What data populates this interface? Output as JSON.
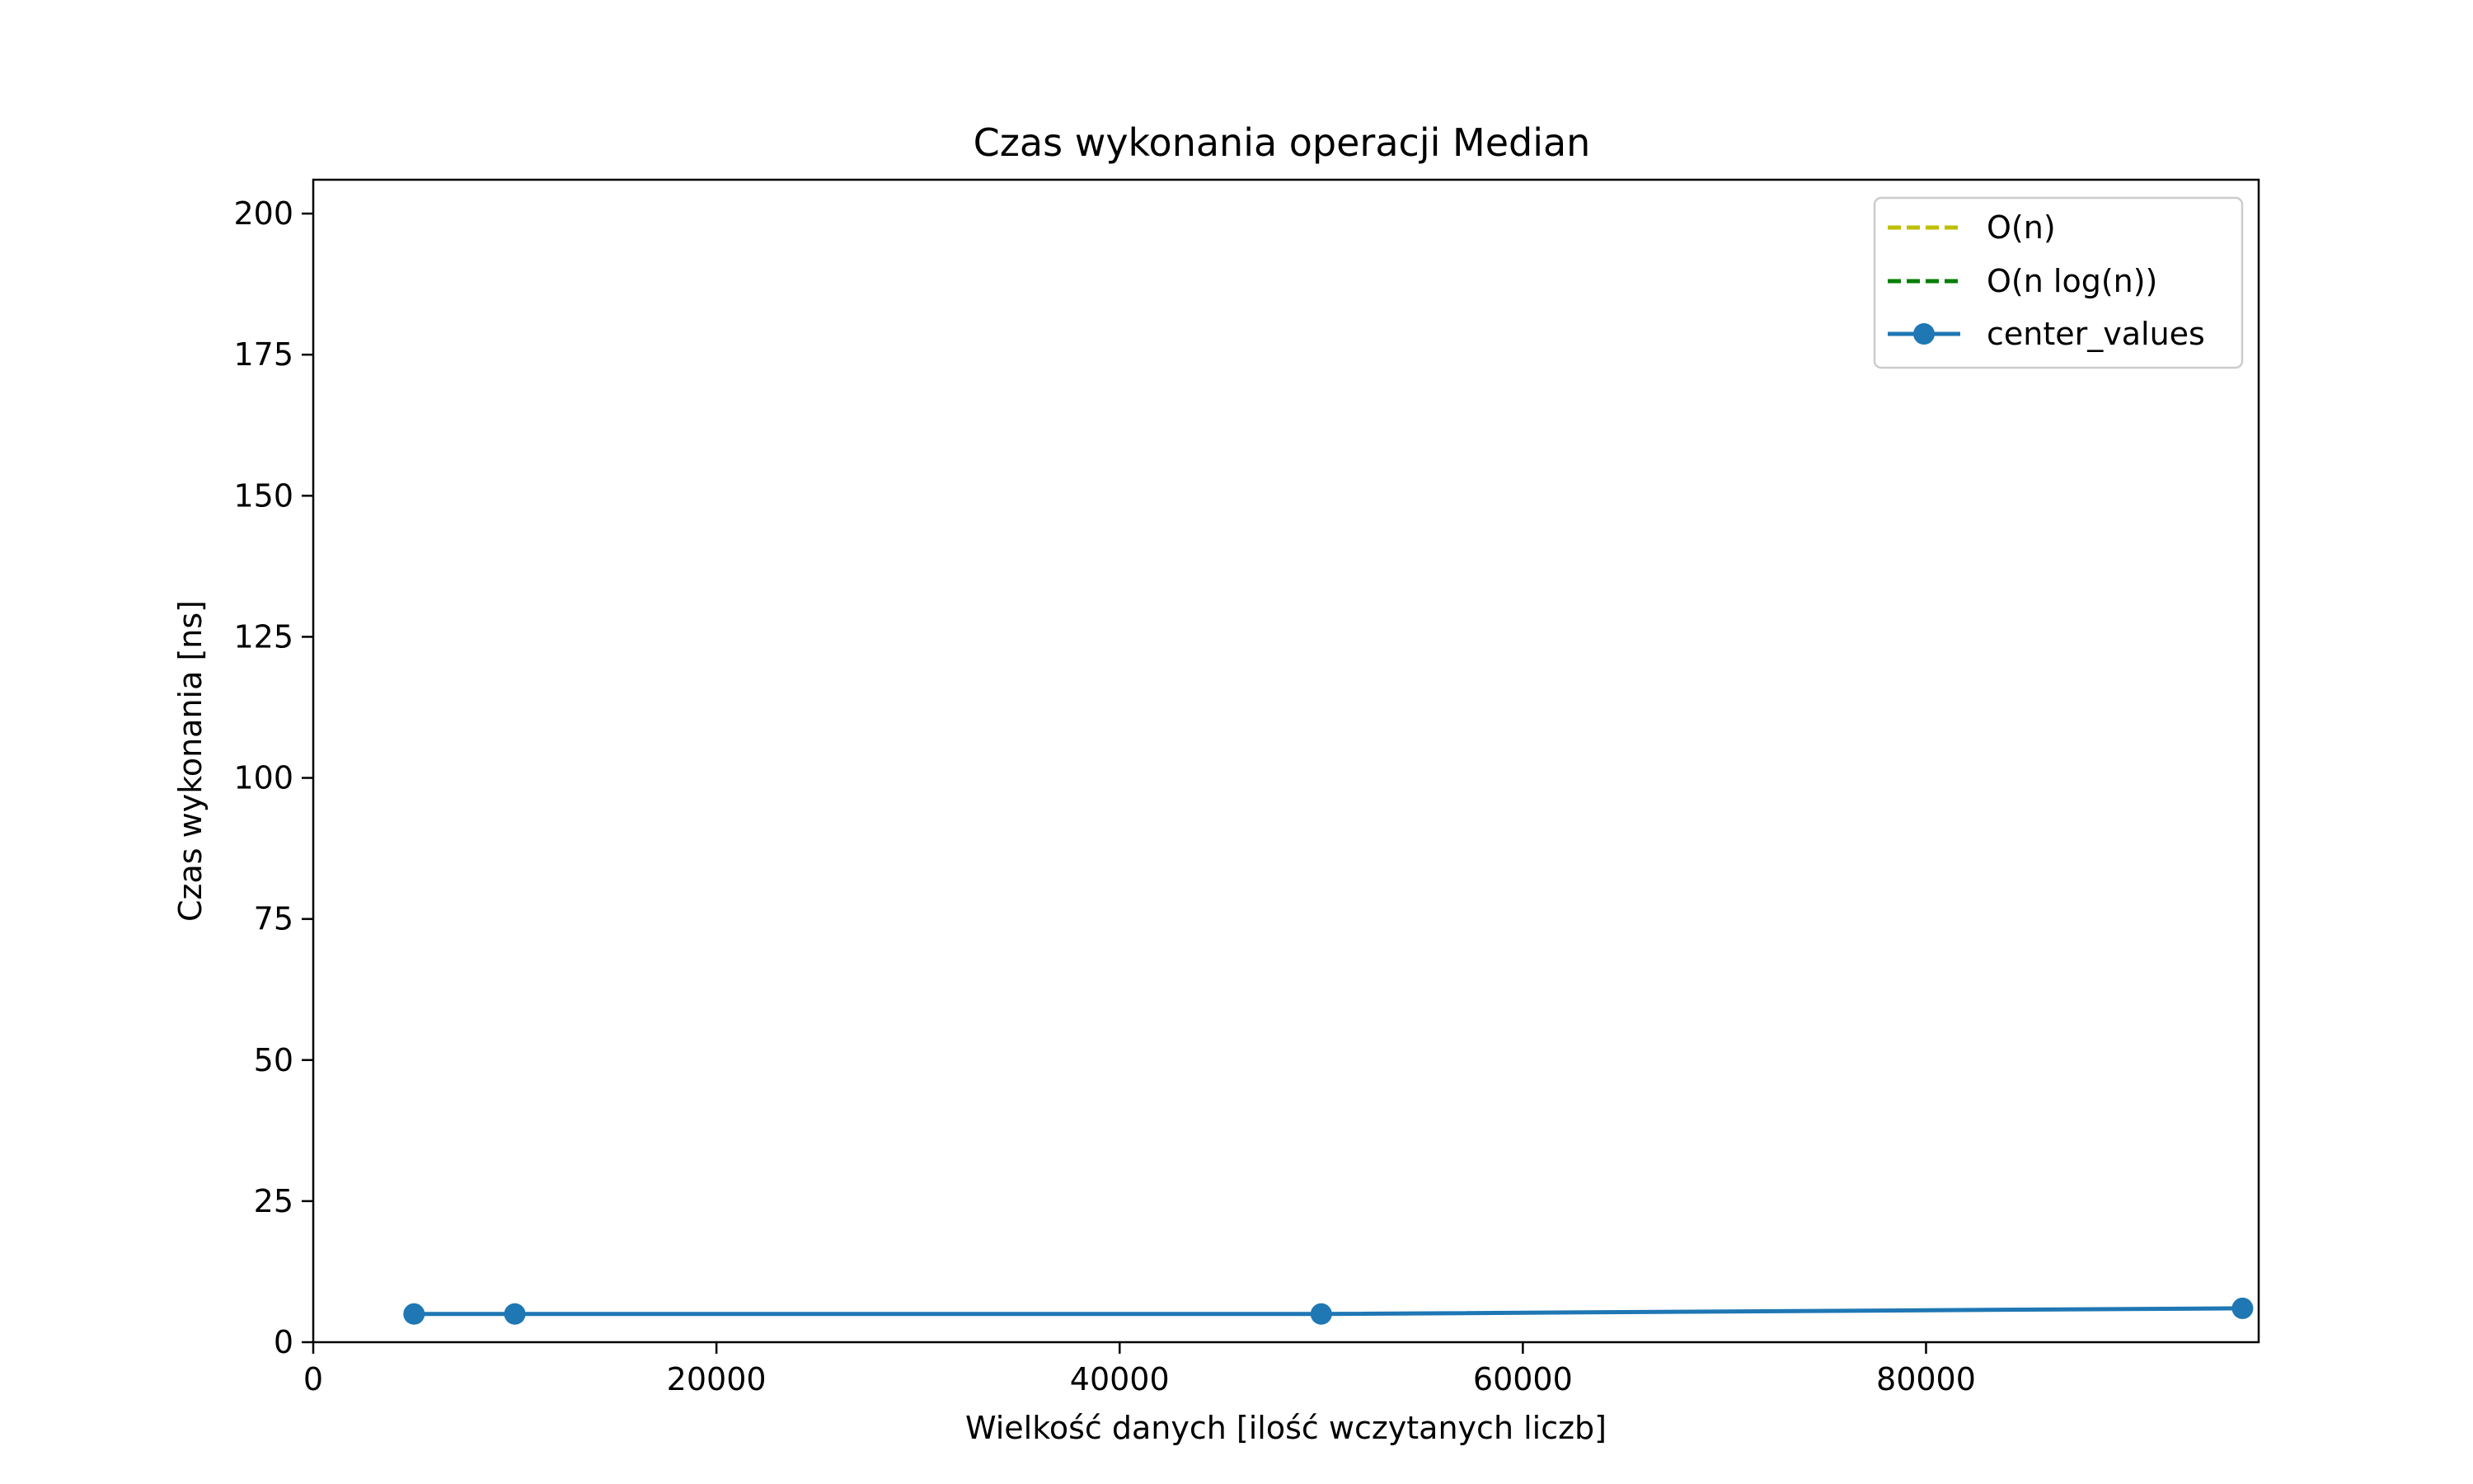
{
  "chart_data": {
    "type": "line",
    "title": "Czas wykonania operacji Median",
    "xlabel": "Wielkość danych [ilość wczytanych liczb]",
    "ylabel": "Czas wykonania [ns]",
    "xlim": [
      0,
      96500
    ],
    "ylim": [
      0,
      206
    ],
    "xticks": [
      0,
      20000,
      40000,
      60000,
      80000
    ],
    "yticks": [
      0,
      25,
      50,
      75,
      100,
      125,
      150,
      175,
      200
    ],
    "xtick_labels": [
      "0",
      "20000",
      "40000",
      "60000",
      "80000"
    ],
    "ytick_labels": [
      "0",
      "25",
      "50",
      "75",
      "100",
      "125",
      "150",
      "175",
      "200"
    ],
    "grid": false,
    "legend_position": "top-right",
    "legend": [
      {
        "label": "O(n)",
        "color": "#bfbf00",
        "style": "dashed"
      },
      {
        "label": "O(n log(n))",
        "color": "#007f00",
        "style": "dashed"
      },
      {
        "label": "center_values",
        "color": "#1f77b4",
        "style": "solid-marker"
      }
    ],
    "series": [
      {
        "name": "O(n)",
        "color": "#bfbf00",
        "style": "dashed",
        "x": [],
        "y": []
      },
      {
        "name": "O(n log(n))",
        "color": "#007f00",
        "style": "dashed",
        "x": [],
        "y": []
      },
      {
        "name": "center_values",
        "color": "#1f77b4",
        "style": "solid-marker",
        "x": [
          5000,
          10000,
          50000,
          95700
        ],
        "y": [
          5,
          5,
          5,
          6
        ]
      }
    ]
  }
}
